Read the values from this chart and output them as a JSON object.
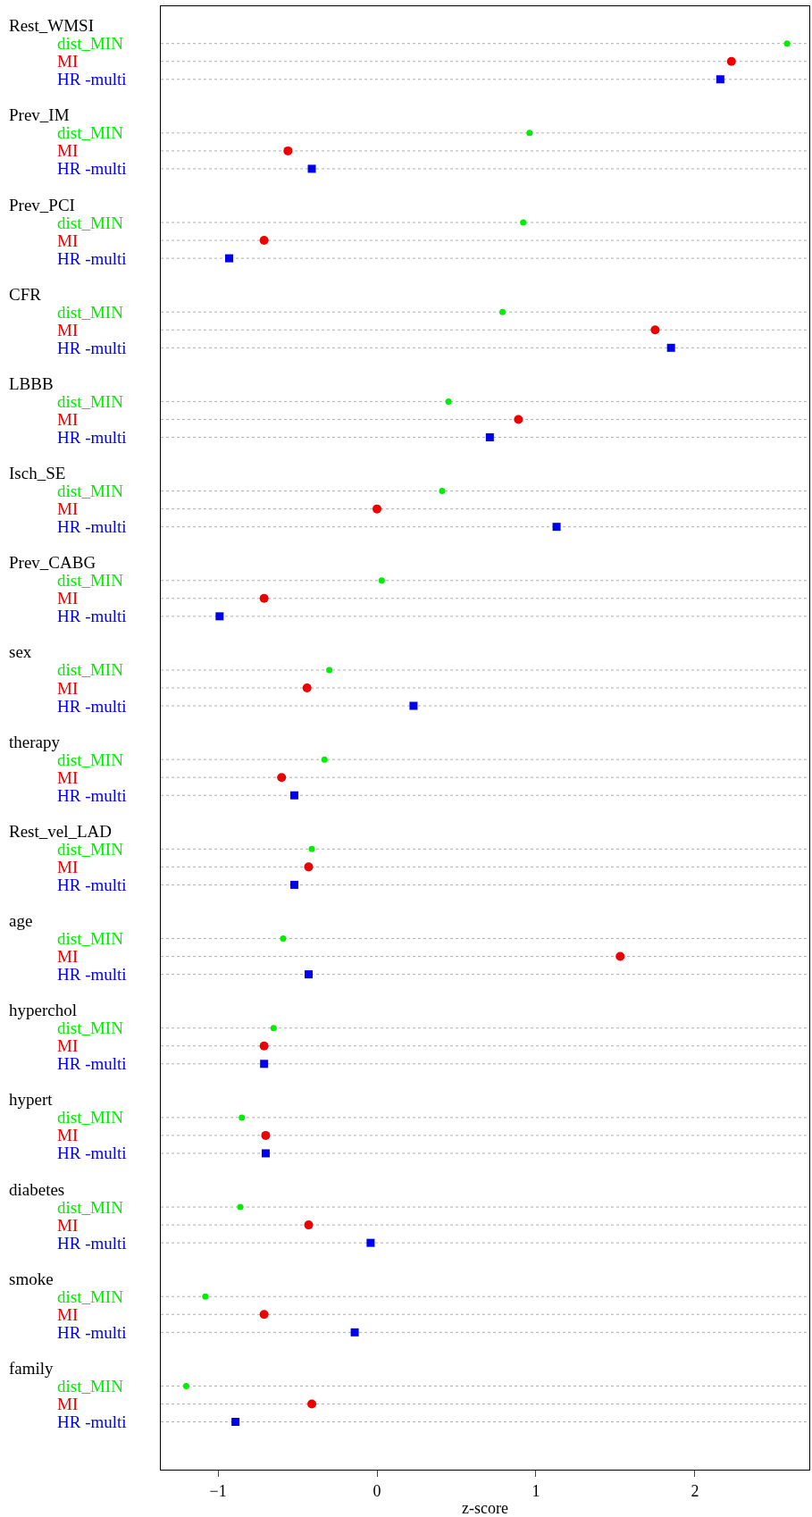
{
  "chart_data": {
    "type": "scatter",
    "orientation": "horizontal",
    "xlabel": "z-score",
    "grid": "y",
    "categories": [
      "Rest_WMSI",
      "Prev_IM",
      "Prev_PCI",
      "CFR",
      "LBBB",
      "Isch_SE",
      "Prev_CABG",
      "sex",
      "therapy",
      "Rest_vel_LAD",
      "age",
      "hyperchol",
      "hypert",
      "diabetes",
      "smoke",
      "family"
    ],
    "series": [
      {
        "name": "dist_MIN",
        "color": "#00ee00",
        "marker": "circle",
        "values": [
          2.58,
          0.96,
          0.92,
          0.79,
          0.45,
          0.41,
          0.03,
          -0.3,
          -0.33,
          -0.41,
          -0.59,
          -0.65,
          -0.85,
          -0.86,
          -1.08,
          -1.2
        ]
      },
      {
        "name": "MI",
        "color": "#ee0000",
        "marker": "circle",
        "values": [
          2.23,
          -0.56,
          -0.71,
          1.75,
          0.89,
          0.0,
          -0.71,
          -0.44,
          -0.6,
          -0.43,
          1.53,
          -0.71,
          -0.7,
          -0.43,
          -0.71,
          -0.41
        ]
      },
      {
        "name": "HR -multi",
        "color": "#0000ee",
        "marker": "square",
        "values": [
          2.16,
          -0.41,
          -0.93,
          1.85,
          0.71,
          1.13,
          -0.99,
          0.23,
          -0.52,
          -0.52,
          -0.43,
          -0.71,
          -0.7,
          -0.04,
          -0.14,
          -0.89
        ]
      }
    ],
    "xlim": [
      -1.36,
      2.72
    ],
    "xticks": [
      {
        "value": -1,
        "label": "−1"
      },
      0,
      1,
      2
    ]
  }
}
